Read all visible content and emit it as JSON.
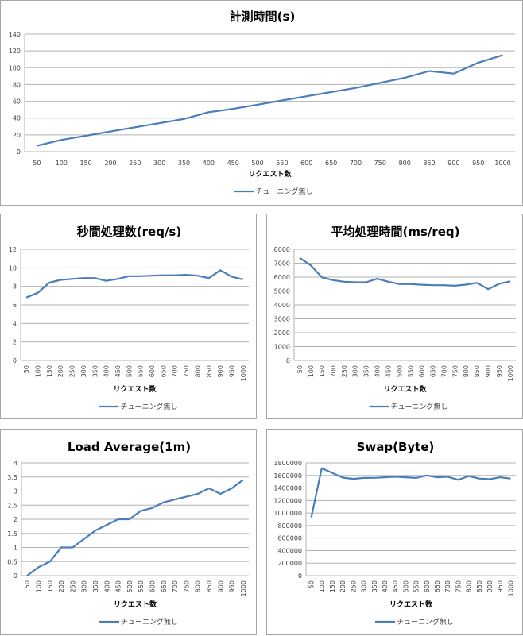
{
  "chart_data": [
    {
      "id": "elapsed",
      "type": "line",
      "title": "計測時間(s)",
      "xlabel": "リクエスト数",
      "ylabel": "",
      "categories": [
        "50",
        "100",
        "150",
        "200",
        "250",
        "300",
        "350",
        "400",
        "450",
        "500",
        "550",
        "600",
        "650",
        "700",
        "750",
        "800",
        "850",
        "900",
        "950",
        "1000"
      ],
      "series": [
        {
          "name": "チューニング無し",
          "color": "#4a7ebb",
          "values": [
            7,
            14,
            19,
            24,
            29,
            34,
            39,
            47,
            51,
            56,
            61,
            66,
            71,
            76,
            82,
            88,
            96,
            93,
            106,
            115
          ]
        }
      ],
      "ylim": [
        0,
        140
      ],
      "ystep": 20,
      "yticks": [
        "0",
        "20",
        "40",
        "60",
        "80",
        "100",
        "120",
        "140"
      ],
      "grid": true,
      "legend_position": "bottom",
      "x_tick_rotation": 0
    },
    {
      "id": "throughput",
      "type": "line",
      "title": "秒間処理数(req/s)",
      "xlabel": "リクエスト数",
      "ylabel": "",
      "categories": [
        "50",
        "100",
        "150",
        "200",
        "250",
        "300",
        "350",
        "400",
        "450",
        "500",
        "550",
        "600",
        "650",
        "700",
        "750",
        "800",
        "850",
        "900",
        "950",
        "1000"
      ],
      "series": [
        {
          "name": "チューニング無し",
          "color": "#4a7ebb",
          "values": [
            6.8,
            7.3,
            8.4,
            8.7,
            8.8,
            8.9,
            8.9,
            8.6,
            8.8,
            9.1,
            9.1,
            9.15,
            9.2,
            9.2,
            9.25,
            9.15,
            8.9,
            9.75,
            9.05,
            8.75
          ]
        }
      ],
      "ylim": [
        0,
        12
      ],
      "ystep": 2,
      "yticks": [
        "0",
        "2",
        "4",
        "6",
        "8",
        "10",
        "12"
      ],
      "grid": true,
      "legend_position": "bottom",
      "x_tick_rotation": -90
    },
    {
      "id": "avg_time",
      "type": "line",
      "title": "平均処理時間(ms/req)",
      "xlabel": "リクエスト数",
      "ylabel": "",
      "categories": [
        "50",
        "100",
        "150",
        "200",
        "250",
        "300",
        "350",
        "400",
        "450",
        "500",
        "550",
        "600",
        "650",
        "700",
        "750",
        "800",
        "850",
        "900",
        "950",
        "1000"
      ],
      "series": [
        {
          "name": "チューニング無し",
          "color": "#4a7ebb",
          "values": [
            7380,
            6850,
            5980,
            5780,
            5670,
            5630,
            5630,
            5880,
            5670,
            5500,
            5500,
            5450,
            5420,
            5420,
            5380,
            5460,
            5590,
            5130,
            5520,
            5700
          ]
        }
      ],
      "ylim": [
        0,
        8000
      ],
      "ystep": 1000,
      "yticks": [
        "0",
        "1000",
        "2000",
        "3000",
        "4000",
        "5000",
        "6000",
        "7000",
        "8000"
      ],
      "grid": true,
      "legend_position": "bottom",
      "x_tick_rotation": -90
    },
    {
      "id": "load_avg",
      "type": "line",
      "title": "Load Average(1m)",
      "xlabel": "リクエスト数",
      "ylabel": "",
      "categories": [
        "50",
        "100",
        "150",
        "200",
        "250",
        "300",
        "350",
        "400",
        "450",
        "500",
        "550",
        "600",
        "650",
        "700",
        "750",
        "800",
        "850",
        "900",
        "950",
        "1000"
      ],
      "series": [
        {
          "name": "チューニング無し",
          "color": "#4a7ebb",
          "values": [
            0,
            0.3,
            0.5,
            1.0,
            1.0,
            1.3,
            1.6,
            1.8,
            2.0,
            2.0,
            2.3,
            2.4,
            2.6,
            2.7,
            2.8,
            2.9,
            3.1,
            2.9,
            3.1,
            3.4
          ]
        }
      ],
      "ylim": [
        0,
        4
      ],
      "ystep": 0.5,
      "yticks": [
        "0",
        "0.5",
        "1",
        "1.5",
        "2",
        "2.5",
        "3",
        "3.5",
        "4"
      ],
      "grid": true,
      "legend_position": "bottom",
      "x_tick_rotation": -90
    },
    {
      "id": "swap",
      "type": "line",
      "title": "Swap(Byte)",
      "xlabel": "リクエスト数",
      "ylabel": "",
      "categories": [
        "50",
        "100",
        "150",
        "200",
        "250",
        "300",
        "350",
        "400",
        "450",
        "500",
        "550",
        "600",
        "650",
        "700",
        "750",
        "800",
        "850",
        "900",
        "950",
        "1000"
      ],
      "series": [
        {
          "name": "チューニング無し",
          "color": "#4a7ebb",
          "values": [
            930000,
            1715000,
            1640000,
            1565000,
            1545000,
            1560000,
            1562000,
            1570000,
            1580000,
            1570000,
            1560000,
            1600000,
            1570000,
            1580000,
            1530000,
            1590000,
            1550000,
            1540000,
            1570000,
            1550000
          ]
        }
      ],
      "ylim": [
        0,
        1800000
      ],
      "ystep": 200000,
      "yticks": [
        "0",
        "200000",
        "400000",
        "600000",
        "800000",
        "1000000",
        "1200000",
        "1400000",
        "1600000",
        "1800000"
      ],
      "grid": true,
      "legend_position": "bottom",
      "x_tick_rotation": -90
    }
  ]
}
